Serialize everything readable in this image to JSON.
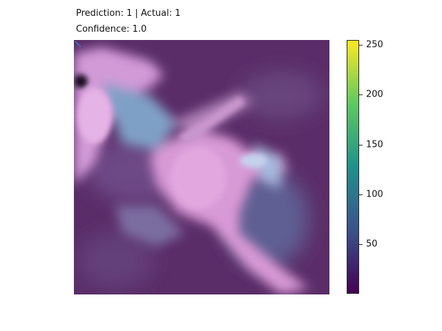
{
  "figure": {
    "title_line_1": "Prediction: 1 | Actual: 1",
    "title_line_2": "Confidence: 1.0"
  },
  "image": {
    "subject": "microscopy image of a pink-purple stained cell with branching processes on a dark purple background"
  },
  "colorbar": {
    "colormap": "viridis",
    "range": [
      0,
      255
    ],
    "ticks": [
      {
        "value": 250,
        "label": "250"
      },
      {
        "value": 200,
        "label": "200"
      },
      {
        "value": 150,
        "label": "150"
      },
      {
        "value": 100,
        "label": "100"
      },
      {
        "value": 50,
        "label": "50"
      }
    ],
    "colors": [
      "#440154",
      "#3b528b",
      "#21918c",
      "#5ec962",
      "#fde725"
    ]
  }
}
